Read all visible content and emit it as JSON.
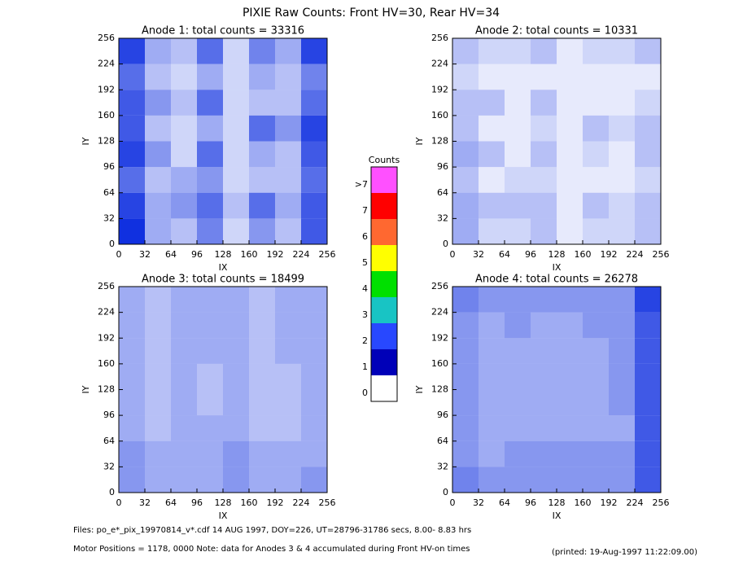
{
  "figure": {
    "title": "PIXIE Raw Counts:  Front HV=30, Rear HV=34",
    "colorbar": {
      "title": "Counts",
      "ticks": [
        0,
        1,
        2,
        3,
        4,
        5,
        6,
        7,
        {
          "value": 8,
          "label": ">7"
        }
      ],
      "colors": [
        "#ffffff",
        "#0000b8",
        "#2848ff",
        "#18c4c4",
        "#00e000",
        "#ffff00",
        "#ff6830",
        "#ff0000",
        "#ff50ff"
      ]
    },
    "footer": [
      "Files: po_e*_pix_19970814_v*.cdf    14 AUG 1997, DOY=226, UT=28796-31786 secs,  8.00- 8.83 hrs",
      "Motor Positions = 1178, 0000    Note: data for Anodes 3 & 4 accumulated during Front HV-on times",
      "(printed: 19-Aug-1997 11:22:09.00)"
    ]
  },
  "chart_data": [
    {
      "type": "heatmap",
      "title": "Anode 1: total counts = 33316",
      "x_label": "IX",
      "y_label": "IY",
      "color": "#1030e0",
      "xlim": [
        0,
        256
      ],
      "ylim": [
        0,
        256
      ],
      "xticks": [
        0,
        32,
        64,
        96,
        128,
        160,
        192,
        224,
        256
      ],
      "yticks": [
        0,
        32,
        64,
        96,
        128,
        160,
        192,
        224,
        256
      ],
      "values": [
        [
          1.0,
          0.4,
          0.3,
          0.6,
          0.2,
          0.5,
          0.3,
          0.8
        ],
        [
          0.9,
          0.4,
          0.5,
          0.7,
          0.3,
          0.7,
          0.4,
          0.8
        ],
        [
          0.7,
          0.3,
          0.4,
          0.5,
          0.2,
          0.3,
          0.3,
          0.7
        ],
        [
          0.9,
          0.5,
          0.2,
          0.7,
          0.2,
          0.4,
          0.3,
          0.8
        ],
        [
          0.8,
          0.3,
          0.2,
          0.4,
          0.2,
          0.7,
          0.5,
          0.9
        ],
        [
          0.8,
          0.5,
          0.3,
          0.7,
          0.2,
          0.3,
          0.3,
          0.7
        ],
        [
          0.7,
          0.3,
          0.2,
          0.4,
          0.2,
          0.4,
          0.3,
          0.6
        ],
        [
          0.9,
          0.4,
          0.3,
          0.7,
          0.2,
          0.6,
          0.4,
          0.9
        ]
      ]
    },
    {
      "type": "heatmap",
      "title": "Anode 2: total counts = 10331",
      "x_label": "IX",
      "y_label": "IY",
      "color": "#1030e0",
      "xlim": [
        0,
        256
      ],
      "ylim": [
        0,
        256
      ],
      "xticks": [
        0,
        32,
        64,
        96,
        128,
        160,
        192,
        224,
        256
      ],
      "yticks": [
        0,
        32,
        64,
        96,
        128,
        160,
        192,
        224,
        256
      ],
      "values": [
        [
          0.4,
          0.2,
          0.2,
          0.3,
          0.1,
          0.2,
          0.2,
          0.3
        ],
        [
          0.4,
          0.3,
          0.3,
          0.3,
          0.1,
          0.3,
          0.2,
          0.3
        ],
        [
          0.3,
          0.1,
          0.2,
          0.2,
          0.1,
          0.1,
          0.1,
          0.2
        ],
        [
          0.4,
          0.3,
          0.1,
          0.3,
          0.1,
          0.2,
          0.1,
          0.3
        ],
        [
          0.3,
          0.1,
          0.1,
          0.2,
          0.1,
          0.3,
          0.2,
          0.3
        ],
        [
          0.3,
          0.3,
          0.1,
          0.3,
          0.1,
          0.1,
          0.1,
          0.2
        ],
        [
          0.2,
          0.1,
          0.1,
          0.1,
          0.1,
          0.1,
          0.1,
          0.1
        ],
        [
          0.3,
          0.2,
          0.2,
          0.3,
          0.1,
          0.2,
          0.2,
          0.3
        ]
      ]
    },
    {
      "type": "heatmap",
      "title": "Anode 3: total counts = 18499",
      "x_label": "IX",
      "y_label": "IY",
      "color": "#1030e0",
      "xlim": [
        0,
        256
      ],
      "ylim": [
        0,
        256
      ],
      "xticks": [
        0,
        32,
        64,
        96,
        128,
        160,
        192,
        224,
        256
      ],
      "yticks": [
        0,
        32,
        64,
        96,
        128,
        160,
        192,
        224,
        256
      ],
      "values": [
        [
          0.5,
          0.4,
          0.4,
          0.4,
          0.5,
          0.4,
          0.4,
          0.5
        ],
        [
          0.5,
          0.4,
          0.4,
          0.4,
          0.5,
          0.4,
          0.4,
          0.4
        ],
        [
          0.4,
          0.3,
          0.4,
          0.4,
          0.4,
          0.3,
          0.3,
          0.4
        ],
        [
          0.4,
          0.3,
          0.4,
          0.3,
          0.4,
          0.3,
          0.3,
          0.4
        ],
        [
          0.4,
          0.3,
          0.4,
          0.3,
          0.4,
          0.3,
          0.3,
          0.4
        ],
        [
          0.4,
          0.3,
          0.4,
          0.4,
          0.4,
          0.3,
          0.4,
          0.4
        ],
        [
          0.4,
          0.3,
          0.4,
          0.4,
          0.4,
          0.3,
          0.4,
          0.4
        ],
        [
          0.4,
          0.3,
          0.4,
          0.4,
          0.4,
          0.3,
          0.4,
          0.4
        ]
      ]
    },
    {
      "type": "heatmap",
      "title": "Anode 4: total counts = 26278",
      "x_label": "IX",
      "y_label": "IY",
      "color": "#1030e0",
      "xlim": [
        0,
        256
      ],
      "ylim": [
        0,
        256
      ],
      "xticks": [
        0,
        32,
        64,
        96,
        128,
        160,
        192,
        224,
        256
      ],
      "yticks": [
        0,
        32,
        64,
        96,
        128,
        160,
        192,
        224,
        256
      ],
      "values": [
        [
          0.6,
          0.5,
          0.5,
          0.5,
          0.5,
          0.5,
          0.5,
          0.8
        ],
        [
          0.5,
          0.4,
          0.5,
          0.5,
          0.5,
          0.5,
          0.5,
          0.8
        ],
        [
          0.5,
          0.4,
          0.4,
          0.4,
          0.4,
          0.4,
          0.4,
          0.8
        ],
        [
          0.5,
          0.4,
          0.4,
          0.4,
          0.4,
          0.4,
          0.5,
          0.8
        ],
        [
          0.5,
          0.4,
          0.4,
          0.4,
          0.4,
          0.4,
          0.5,
          0.8
        ],
        [
          0.5,
          0.4,
          0.4,
          0.4,
          0.4,
          0.4,
          0.5,
          0.8
        ],
        [
          0.5,
          0.4,
          0.5,
          0.4,
          0.4,
          0.5,
          0.5,
          0.8
        ],
        [
          0.6,
          0.5,
          0.5,
          0.5,
          0.5,
          0.5,
          0.5,
          0.9
        ]
      ]
    }
  ]
}
